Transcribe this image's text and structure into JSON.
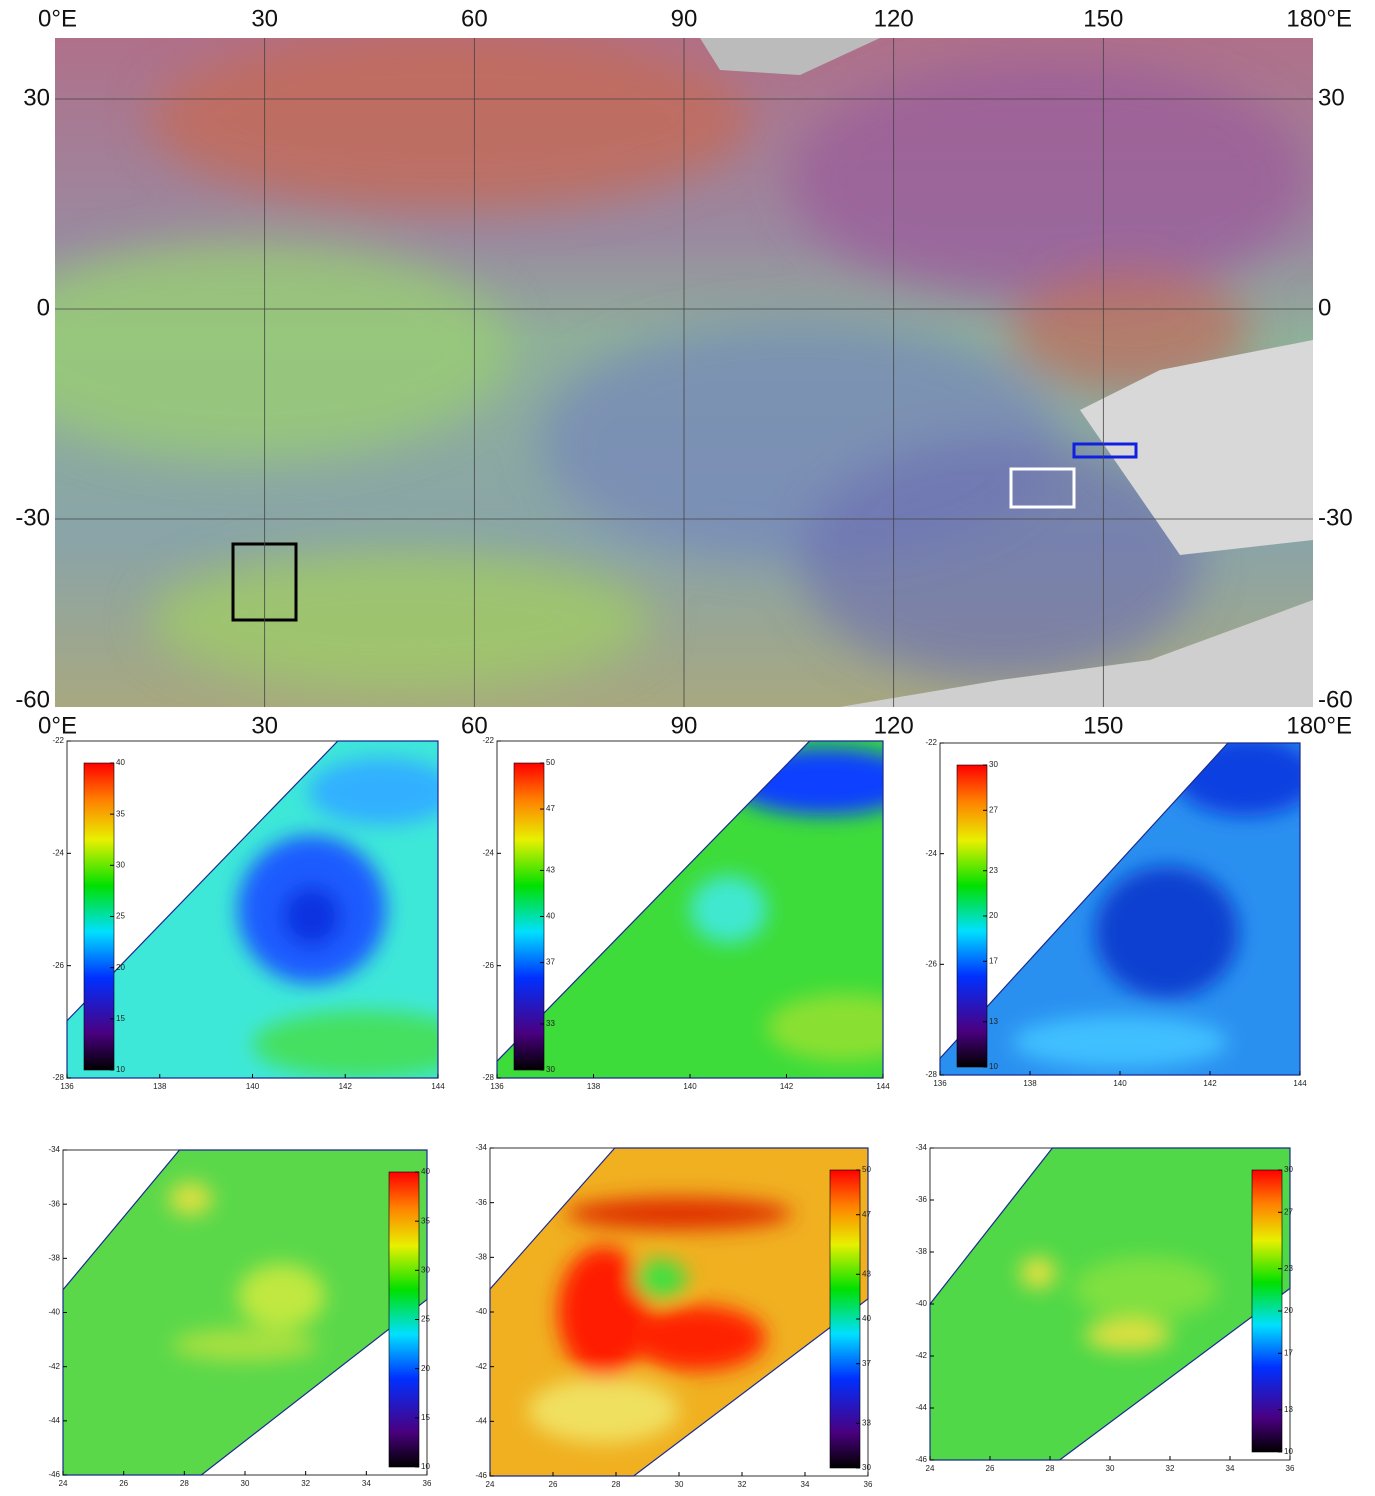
{
  "map": {
    "lon_ticks": [
      {
        "value": 0,
        "label": "0°E"
      },
      30,
      60,
      90,
      120,
      150,
      {
        "value": 180,
        "label": "180°E"
      }
    ],
    "lat_ticks": [
      30,
      0,
      -30,
      -60
    ]
  },
  "panels": [
    {
      "xticks": [
        136,
        138,
        140,
        142,
        144
      ],
      "yticks": [
        -28,
        -26,
        -24,
        -22
      ],
      "colorbar_ticks": [
        10,
        15,
        20,
        25,
        30,
        35,
        40
      ]
    },
    {
      "xticks": [
        136,
        138,
        140,
        142,
        144
      ],
      "yticks": [
        -28,
        -26,
        -24,
        -22
      ],
      "colorbar_ticks": [
        30,
        33,
        37,
        40,
        43,
        47,
        50
      ]
    },
    {
      "xticks": [
        136,
        138,
        140,
        142,
        144
      ],
      "yticks": [
        -28,
        -26,
        -24,
        -22
      ],
      "colorbar_ticks": [
        10,
        13,
        17,
        20,
        23,
        27,
        30
      ]
    },
    {
      "xticks": [
        24,
        26,
        28,
        30,
        32,
        34,
        36
      ],
      "yticks": [
        -46,
        -44,
        -42,
        -40,
        -38,
        -36,
        -34
      ],
      "colorbar_ticks": [
        10,
        15,
        20,
        25,
        30,
        35,
        40
      ]
    },
    {
      "xticks": [
        24,
        26,
        28,
        30,
        32,
        34,
        36
      ],
      "yticks": [
        -46,
        -44,
        -42,
        -40,
        -38,
        -36,
        -34
      ],
      "colorbar_ticks": [
        30,
        33,
        37,
        40,
        43,
        47,
        50
      ]
    },
    {
      "xticks": [
        24,
        26,
        28,
        30,
        32,
        34,
        36
      ],
      "yticks": [
        -46,
        -44,
        -42,
        -40,
        -38,
        -36,
        -34
      ],
      "colorbar_ticks": [
        10,
        13,
        17,
        20,
        23,
        27,
        30
      ]
    }
  ]
}
